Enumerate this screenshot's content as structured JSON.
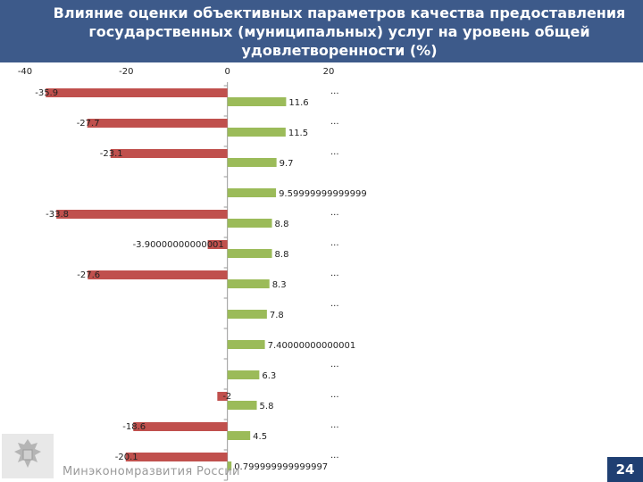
{
  "header": {
    "title_line1": "Влияние оценки объективных параметров качества предоставления",
    "title_line2": "государственных (муниципальных) услуг на уровень общей",
    "title_line3": "удовлетворенности (%)"
  },
  "footer": {
    "org_name": "Минэкономразвития России",
    "page_number": "24"
  },
  "colors": {
    "header_bg": "#3d5a8a",
    "negative_bar": "#c0504d",
    "positive_bar": "#9bbb59",
    "page_badge": "#1f3f72"
  },
  "chart_data": {
    "type": "bar",
    "orientation": "horizontal",
    "xlim": [
      -40,
      20
    ],
    "x_ticks": [
      "-40",
      "-20",
      "0",
      "20"
    ],
    "series": [
      {
        "name": "negative",
        "color": "#c0504d",
        "values": [
          -35.9,
          -27.7,
          -23.1,
          null,
          -33.8,
          -3.9,
          -27.6,
          null,
          null,
          null,
          -2,
          -18.6,
          -20.1
        ],
        "labels": [
          "-35.9",
          "-27.7",
          "-23.1",
          "",
          "-33.8",
          "-3.90000000000001",
          "-27.6",
          "",
          "",
          "",
          "-2",
          "-18.6",
          "-20.1"
        ]
      },
      {
        "name": "positive",
        "color": "#9bbb59",
        "values": [
          11.6,
          11.5,
          9.7,
          9.6,
          8.8,
          8.8,
          8.3,
          7.8,
          7.4,
          6.3,
          5.8,
          4.5,
          0.8
        ],
        "labels": [
          "11.6",
          "11.5",
          "9.7",
          "9.59999999999999",
          "8.8",
          "8.8",
          "8.3",
          "7.8",
          "7.40000000000001",
          "6.3",
          "5.8",
          "4.5",
          "0.799999999999997"
        ]
      }
    ],
    "category_labels": [
      "...",
      "...",
      "...",
      "",
      "...",
      "...",
      "...",
      "...",
      "",
      "...",
      "...",
      "...",
      "..."
    ]
  }
}
